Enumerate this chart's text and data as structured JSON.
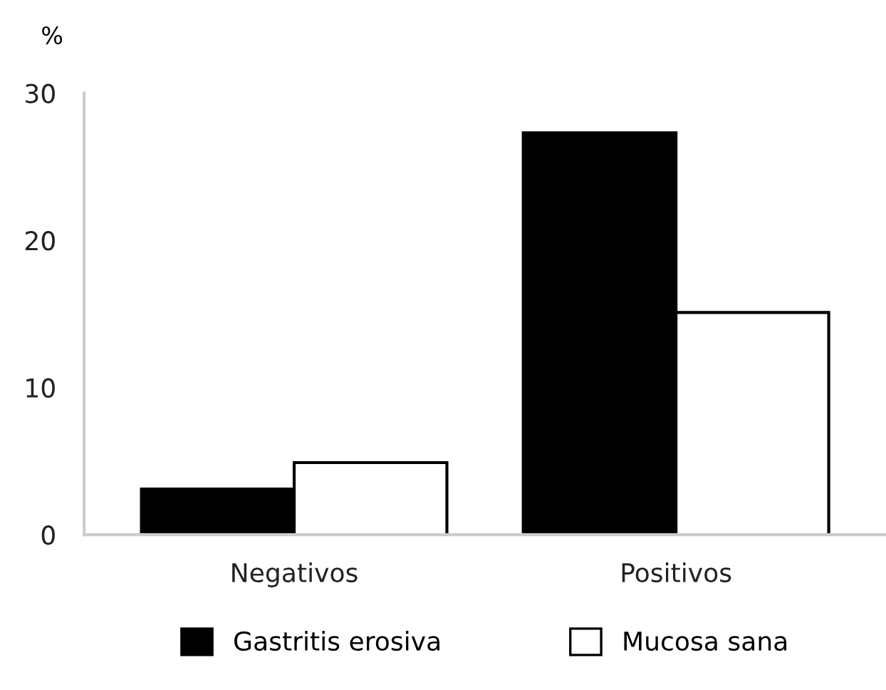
{
  "chart_data": {
    "type": "bar",
    "ylabel": "%",
    "categories": [
      "Negativos",
      "Positivos"
    ],
    "series": [
      {
        "name": "Gastritis erosiva",
        "color": "#000000",
        "values": [
          3.1,
          27.3
        ]
      },
      {
        "name": "Mucosa sana",
        "color": "#ffffff",
        "values": [
          4.9,
          15.1
        ]
      }
    ],
    "ylim": [
      0,
      30
    ],
    "yticks": [
      0,
      10,
      20,
      30
    ],
    "grid": false,
    "legend": "bottom"
  }
}
